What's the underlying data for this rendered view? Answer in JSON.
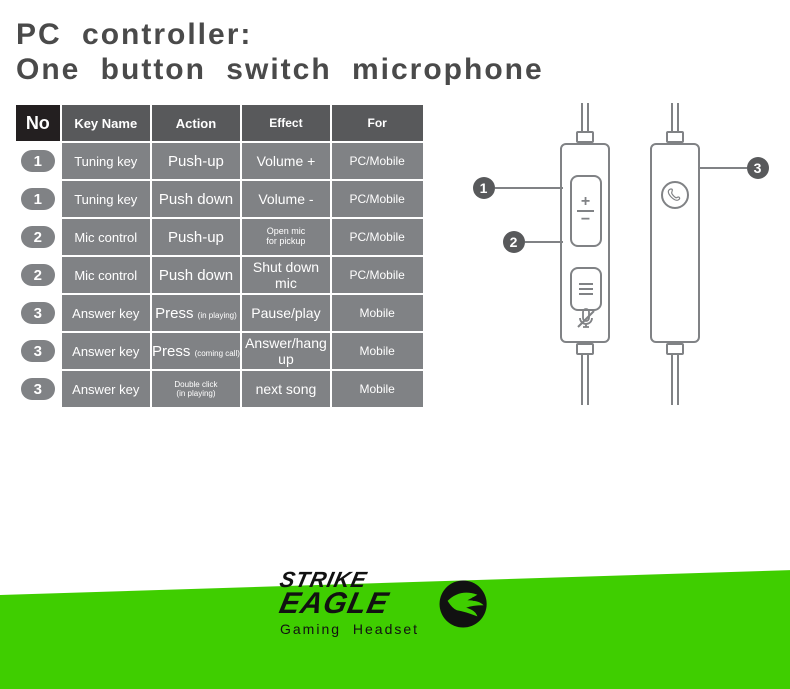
{
  "title": {
    "line1": "PC controller:",
    "line2": "One button switch microphone",
    "color": "#4a4a4a",
    "fontsize": 30
  },
  "table": {
    "header_bg": "#58595b",
    "no_header_bg": "#231f20",
    "cell_bg": "#808285",
    "pill_bg": "#808285",
    "text_color": "#ffffff",
    "columns": [
      "No",
      "Key Name",
      "Action",
      "Effect",
      "For"
    ],
    "rows": [
      {
        "no": "1",
        "key": "Tuning key",
        "action": "Push-up",
        "effect": "Volume +",
        "for": "PC/Mobile"
      },
      {
        "no": "1",
        "key": "Tuning key",
        "action": "Push down",
        "effect": "Volume -",
        "for": "PC/Mobile"
      },
      {
        "no": "2",
        "key": "Mic control",
        "action": "Push-up",
        "effect": "Open mic\nfor pickup",
        "for": "PC/Mobile"
      },
      {
        "no": "2",
        "key": "Mic control",
        "action": "Push down",
        "effect": "Shut down mic",
        "for": "PC/Mobile"
      },
      {
        "no": "3",
        "key": "Answer key",
        "action": "Press (in playing)",
        "effect": "Pause/play",
        "for": "Mobile"
      },
      {
        "no": "3",
        "key": "Answer key",
        "action": "Press (coming call)",
        "effect": "Answer/hang up",
        "for": "Mobile"
      },
      {
        "no": "3",
        "key": "Answer key",
        "action": "Double click\n(in playing)",
        "effect": "next song",
        "for": "Mobile"
      }
    ]
  },
  "diagram": {
    "callouts": {
      "1": "1",
      "2": "2",
      "3": "3"
    },
    "dot_bg": "#58595b",
    "line_color": "#808285"
  },
  "footer": {
    "bg_color": "#3fce00",
    "brand_line1": "STRIKE",
    "brand_line2": "EAGLE",
    "brand_sub": "Gaming Headset",
    "brand_color": "#111111"
  }
}
